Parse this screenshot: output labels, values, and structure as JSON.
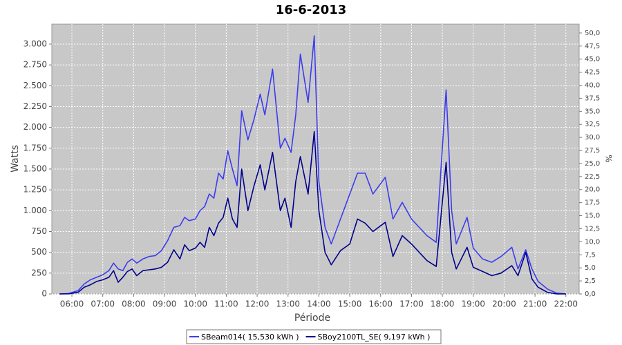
{
  "chart_data": {
    "type": "line",
    "title": "16-6-2013",
    "x_label": "Période",
    "y_label": "Watts",
    "y2_label": "%",
    "x": [
      5.6,
      5.9,
      6.2,
      6.4,
      6.6,
      6.8,
      7.0,
      7.2,
      7.35,
      7.5,
      7.65,
      7.8,
      7.95,
      8.1,
      8.3,
      8.5,
      8.7,
      8.9,
      9.1,
      9.3,
      9.5,
      9.65,
      9.8,
      10.0,
      10.15,
      10.3,
      10.45,
      10.6,
      10.75,
      10.9,
      11.05,
      11.2,
      11.35,
      11.5,
      11.7,
      11.9,
      12.1,
      12.25,
      12.5,
      12.75,
      12.9,
      13.1,
      13.25,
      13.4,
      13.65,
      13.85,
      14.0,
      14.2,
      14.4,
      14.7,
      15.0,
      15.25,
      15.5,
      15.75,
      16.15,
      16.4,
      16.7,
      17.0,
      17.25,
      17.5,
      17.8,
      18.12,
      18.3,
      18.45,
      18.8,
      19.0,
      19.3,
      19.6,
      19.9,
      20.25,
      20.45,
      20.7,
      20.9,
      21.1,
      21.4,
      21.7,
      22.0
    ],
    "series": [
      {
        "name": "SBeam014( 15,530 kWh )",
        "color": "#3c3cf0",
        "values": [
          0,
          5,
          40,
          120,
          170,
          200,
          230,
          280,
          370,
          300,
          280,
          380,
          420,
          370,
          420,
          450,
          460,
          520,
          640,
          800,
          820,
          920,
          880,
          900,
          1000,
          1050,
          1200,
          1150,
          1450,
          1380,
          1720,
          1500,
          1300,
          2200,
          1850,
          2100,
          2400,
          2150,
          2700,
          1750,
          1870,
          1700,
          2150,
          2880,
          2300,
          3100,
          1350,
          800,
          600,
          900,
          1200,
          1450,
          1450,
          1200,
          1400,
          900,
          1100,
          900,
          800,
          700,
          620,
          2450,
          1000,
          600,
          920,
          550,
          420,
          380,
          450,
          560,
          300,
          530,
          300,
          150,
          60,
          10,
          0
        ]
      },
      {
        "name": "SBoy2100TL_SE( 9,197 kWh )",
        "color": "#00008c",
        "values": [
          0,
          2,
          20,
          80,
          110,
          150,
          170,
          200,
          280,
          140,
          200,
          270,
          300,
          220,
          280,
          290,
          300,
          320,
          380,
          530,
          420,
          590,
          520,
          550,
          620,
          560,
          800,
          700,
          850,
          920,
          1150,
          900,
          800,
          1500,
          1000,
          1300,
          1550,
          1250,
          1700,
          1000,
          1150,
          800,
          1350,
          1650,
          1200,
          1950,
          1000,
          500,
          350,
          520,
          600,
          900,
          850,
          750,
          860,
          450,
          700,
          600,
          500,
          400,
          330,
          1580,
          500,
          300,
          560,
          320,
          270,
          220,
          250,
          340,
          220,
          500,
          180,
          80,
          20,
          0,
          0
        ]
      }
    ],
    "xlim": [
      5.35,
      22.43
    ],
    "xticks": [
      {
        "value": 6,
        "label": "06:00"
      },
      {
        "value": 7,
        "label": "07:00"
      },
      {
        "value": 8,
        "label": "08:00"
      },
      {
        "value": 9,
        "label": "09:00"
      },
      {
        "value": 10,
        "label": "10:00"
      },
      {
        "value": 11,
        "label": "11:00"
      },
      {
        "value": 12,
        "label": "12:00"
      },
      {
        "value": 13,
        "label": "13:00"
      },
      {
        "value": 14,
        "label": "14:00"
      },
      {
        "value": 15,
        "label": "15:00"
      },
      {
        "value": 16,
        "label": "16:00"
      },
      {
        "value": 17,
        "label": "17:00"
      },
      {
        "value": 18,
        "label": "18:00"
      },
      {
        "value": 19,
        "label": "19:00"
      },
      {
        "value": 20,
        "label": "20:00"
      },
      {
        "value": 21,
        "label": "21:00"
      },
      {
        "value": 22,
        "label": "22:00"
      }
    ],
    "ylim": [
      0,
      3240
    ],
    "yticks": [
      0,
      250,
      500,
      750,
      {
        "value": 1000,
        "label": "1.000"
      },
      {
        "value": 1250,
        "label": "1.250"
      },
      {
        "value": 1500,
        "label": "1.500"
      },
      {
        "value": 1750,
        "label": "1.750"
      },
      {
        "value": 2000,
        "label": "2.000"
      },
      {
        "value": 2250,
        "label": "2.250"
      },
      {
        "value": 2500,
        "label": "2.500"
      },
      {
        "value": 2750,
        "label": "2.750"
      },
      {
        "value": 3000,
        "label": "3.000"
      }
    ],
    "y2lim": [
      0,
      51.7
    ],
    "y2ticks": [
      {
        "value": 0,
        "label": "0,0"
      },
      {
        "value": 2.5,
        "label": "2,5"
      },
      {
        "value": 5,
        "label": "5,0"
      },
      {
        "value": 7.5,
        "label": "7,5"
      },
      {
        "value": 10,
        "label": "10,0"
      },
      {
        "value": 12.5,
        "label": "12,5"
      },
      {
        "value": 15,
        "label": "15,0"
      },
      {
        "value": 17.5,
        "label": "17,5"
      },
      {
        "value": 20,
        "label": "20,0"
      },
      {
        "value": 22.5,
        "label": "22,5"
      },
      {
        "value": 25,
        "label": "25,0"
      },
      {
        "value": 27.5,
        "label": "27,5"
      },
      {
        "value": 30,
        "label": "30,0"
      },
      {
        "value": 32.5,
        "label": "32,5"
      },
      {
        "value": 35,
        "label": "35,0"
      },
      {
        "value": 37.5,
        "label": "37,5"
      },
      {
        "value": 40,
        "label": "40,0"
      },
      {
        "value": 42.5,
        "label": "42,5"
      },
      {
        "value": 45,
        "label": "45,0"
      },
      {
        "value": 47.5,
        "label": "47,5"
      },
      {
        "value": 50,
        "label": "50,0"
      }
    ],
    "grid": true
  }
}
